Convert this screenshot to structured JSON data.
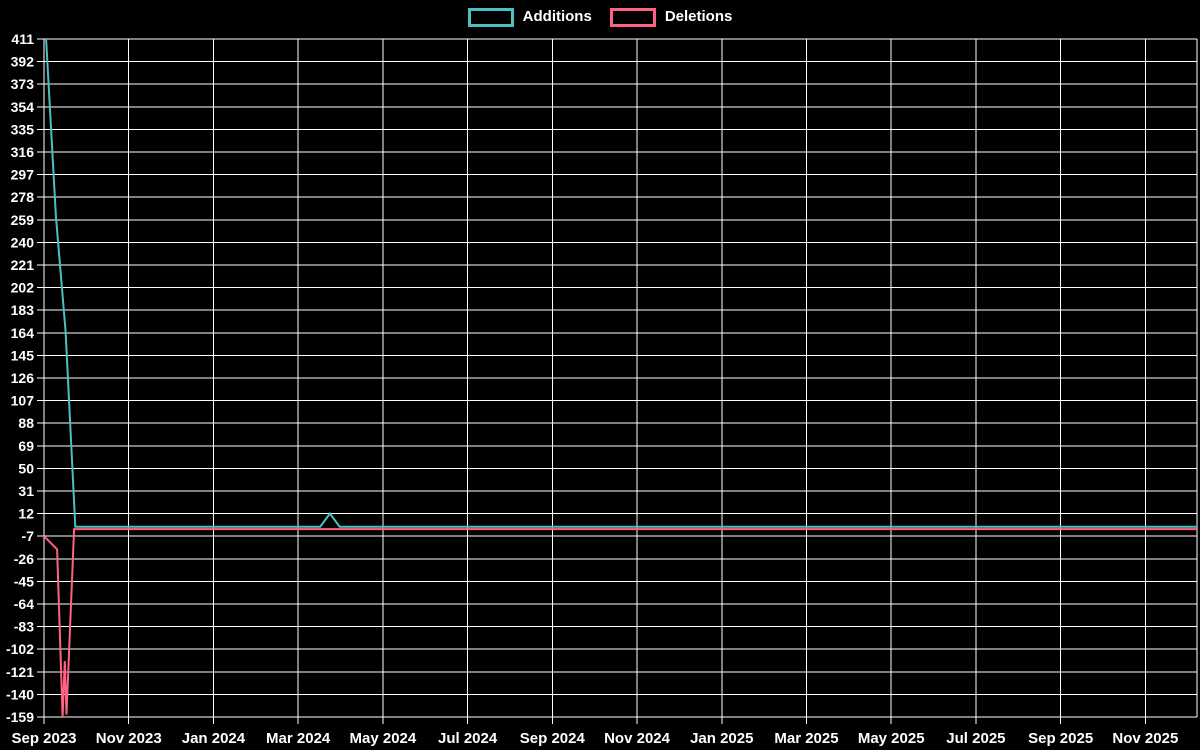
{
  "chart_data": {
    "type": "line",
    "title": "",
    "grid": true,
    "legend_position": "top-center",
    "background_color": "#000000",
    "grid_color": "#ffffff",
    "text_color": "#ffffff",
    "x_axis": {
      "unit": "month",
      "x_encoding": "month_offset_from_first_tick",
      "tick_labels": [
        "Sep 2023",
        "Nov 2023",
        "Jan 2024",
        "Mar 2024",
        "May 2024",
        "Jul 2024",
        "Sep 2024",
        "Nov 2024",
        "Jan 2025",
        "Mar 2025",
        "May 2025",
        "Jul 2025",
        "Sep 2025",
        "Nov 2025"
      ],
      "tick_month_positions": [
        0,
        2,
        4,
        6,
        8,
        10,
        12,
        14,
        16,
        18,
        20,
        22,
        24,
        26
      ],
      "range_months": [
        0,
        27.22
      ]
    },
    "y_axis": {
      "tick_values": [
        411,
        392,
        373,
        354,
        335,
        316,
        297,
        278,
        259,
        240,
        221,
        202,
        183,
        164,
        145,
        126,
        107,
        88,
        69,
        50,
        31,
        12,
        -7,
        -26,
        -45,
        -64,
        -83,
        -102,
        -121,
        -140,
        -159
      ],
      "tick_step": 19,
      "range": [
        -159,
        411
      ]
    },
    "series": [
      {
        "name": "Additions",
        "color": "#4bc0c0",
        "points": [
          [
            0.05,
            411
          ],
          [
            0.28,
            262
          ],
          [
            0.51,
            165
          ],
          [
            0.74,
            1
          ],
          [
            6.52,
            1
          ],
          [
            6.75,
            12
          ],
          [
            6.98,
            1
          ],
          [
            27.22,
            1
          ]
        ]
      },
      {
        "name": "Deletions",
        "color": "#ff6384",
        "points": [
          [
            0.0,
            -7
          ],
          [
            0.31,
            -18
          ],
          [
            0.44,
            -159
          ],
          [
            0.49,
            -112
          ],
          [
            0.53,
            -157
          ],
          [
            0.71,
            -1
          ],
          [
            27.22,
            -1
          ]
        ]
      }
    ]
  }
}
